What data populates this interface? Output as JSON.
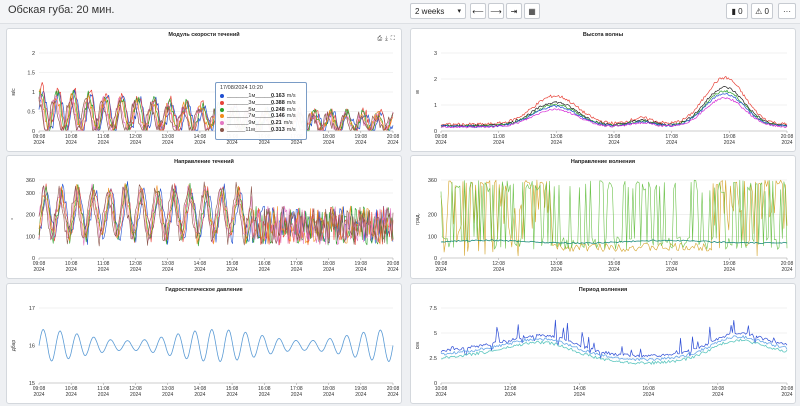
{
  "header": {
    "title": "Обская губа: 20 мин.",
    "range_value": "2 weeks",
    "prev_icon": "arrow-left-icon",
    "next_icon": "arrow-right-icon",
    "end_icon": "skip-to-end-icon",
    "calendar_icon": "calendar-icon",
    "messages_count": "0",
    "alerts_count": "0",
    "more_label": "···"
  },
  "x_ticks": [
    [
      "09:08",
      "2024"
    ],
    [
      "10:08",
      "2024"
    ],
    [
      "11:08",
      "2024"
    ],
    [
      "12:08",
      "2024"
    ],
    [
      "13:08",
      "2024"
    ],
    [
      "14:08",
      "2024"
    ],
    [
      "15:08",
      "2024"
    ],
    [
      "16:08",
      "2024"
    ],
    [
      "17:08",
      "2024"
    ],
    [
      "18:08",
      "2024"
    ],
    [
      "19:08",
      "2024"
    ],
    [
      "20:08",
      "2024"
    ]
  ],
  "x_ticks_sparse": [
    [
      "09:08",
      "2024"
    ],
    [
      "12:08",
      "2024"
    ],
    [
      "13:08",
      "2024"
    ],
    [
      "15:08",
      "2024"
    ],
    [
      "17:08",
      "2024"
    ],
    [
      "19:08",
      "2024"
    ],
    [
      "20:08",
      "2024"
    ]
  ],
  "x_ticks_wave": [
    [
      "09:08",
      "2024"
    ],
    [
      "11:08",
      "2024"
    ],
    [
      "13:08",
      "2024"
    ],
    [
      "15:08",
      "2024"
    ],
    [
      "17:08",
      "2024"
    ],
    [
      "19:08",
      "2024"
    ],
    [
      "20:08",
      "2024"
    ]
  ],
  "x_ticks_period": [
    [
      "10:08",
      "2024"
    ],
    [
      "12:08",
      "2024"
    ],
    [
      "14:08",
      "2024"
    ],
    [
      "16:08",
      "2024"
    ],
    [
      "18:08",
      "2024"
    ],
    [
      "20:08",
      "2024"
    ]
  ],
  "x_ticks_pressure": [
    [
      "09:08",
      "2024"
    ],
    [
      "10:08",
      "2024"
    ],
    [
      "11:08",
      "2024"
    ],
    [
      "12:08",
      "2024"
    ],
    [
      "13:08",
      "2024"
    ],
    [
      "14:08",
      "2024"
    ],
    [
      "15:08",
      "2024"
    ],
    [
      "16:08",
      "2024"
    ],
    [
      "17:08",
      "2024"
    ],
    [
      "18:08",
      "2024"
    ],
    [
      "19:08",
      "2024"
    ],
    [
      "20:08",
      "2024"
    ]
  ],
  "tooltip": {
    "time": "17/08/2024 10:20",
    "rows": [
      {
        "name": "_______1м______",
        "value": "0.163",
        "unit": "m/s",
        "color": "#1f4fd1"
      },
      {
        "name": "_______3м______",
        "value": "0.388",
        "unit": "m/s",
        "color": "#e8443a"
      },
      {
        "name": "_______5м______",
        "value": "0.248",
        "unit": "m/s",
        "color": "#2ca02c"
      },
      {
        "name": "_______7м______",
        "value": "0.146",
        "unit": "m/s",
        "color": "#f08c1c"
      },
      {
        "name": "_______9м______",
        "value": "0.21",
        "unit": "m/s",
        "color": "#e377c2"
      },
      {
        "name": "______11м______",
        "value": "0.313",
        "unit": "m/s",
        "color": "#8c564b"
      }
    ]
  },
  "chart_data": [
    {
      "type": "line",
      "title": "Модуль скорости течений",
      "ylabel": "м/с",
      "ylim": [
        0,
        2
      ],
      "yticks": [
        "0",
        "0.5",
        "1",
        "1.5",
        "2"
      ],
      "x_range": [
        "09:08 2024",
        "20:08 2024"
      ],
      "series": [
        {
          "name": "1м",
          "color": "#1f4fd1",
          "amp": 0.55,
          "base": 0.55
        },
        {
          "name": "3м",
          "color": "#e8443a",
          "amp": 0.6,
          "base": 0.6
        },
        {
          "name": "5м",
          "color": "#2ca02c",
          "amp": 0.55,
          "base": 0.55
        },
        {
          "name": "7м",
          "color": "#f08c1c",
          "amp": 0.5,
          "base": 0.5
        },
        {
          "name": "9м",
          "color": "#e377c2",
          "amp": 0.5,
          "base": 0.45
        },
        {
          "name": "11м",
          "color": "#8c564b",
          "amp": 0.45,
          "base": 0.45
        }
      ],
      "icons": [
        "download-image-icon",
        "download-icon",
        "fullscreen-icon"
      ]
    },
    {
      "type": "line",
      "title": "Высота волны",
      "ylabel": "м",
      "ylim": [
        0,
        3
      ],
      "yticks": [
        "0",
        "1",
        "2",
        "3"
      ],
      "series": [
        {
          "color": "#e8443a"
        },
        {
          "color": "#222222"
        },
        {
          "color": "#2ca02c"
        },
        {
          "color": "#1f4fd1"
        },
        {
          "color": "#d62ad6"
        }
      ]
    },
    {
      "type": "line",
      "title": "Направление течений",
      "ylabel": "°",
      "ylim": [
        0,
        360
      ],
      "yticks": [
        "0",
        "100",
        "200",
        "300",
        "360"
      ]
    },
    {
      "type": "line",
      "title": "Направление волнения",
      "ylabel": "град.",
      "ylim": [
        0,
        360
      ],
      "yticks": [
        "0",
        "100",
        "200",
        "360"
      ],
      "series": [
        {
          "color": "#d4a42a"
        },
        {
          "color": "#6cc24a"
        },
        {
          "color": "#1a8a7a"
        }
      ]
    },
    {
      "type": "line",
      "title": "Гидростатическое давление",
      "ylabel": "дбар",
      "ylim": [
        15,
        17
      ],
      "yticks": [
        "15",
        "16",
        "17"
      ],
      "series": [
        {
          "color": "#5b9bd5"
        }
      ]
    },
    {
      "type": "line",
      "title": "Период волнения",
      "ylabel": "сек",
      "ylim": [
        0,
        7.5
      ],
      "yticks": [
        "0",
        "2.5",
        "5",
        "7.5"
      ],
      "series": [
        {
          "color": "#2f4fd6"
        },
        {
          "color": "#6aa8e8"
        },
        {
          "color": "#5fc7c0"
        }
      ]
    }
  ]
}
